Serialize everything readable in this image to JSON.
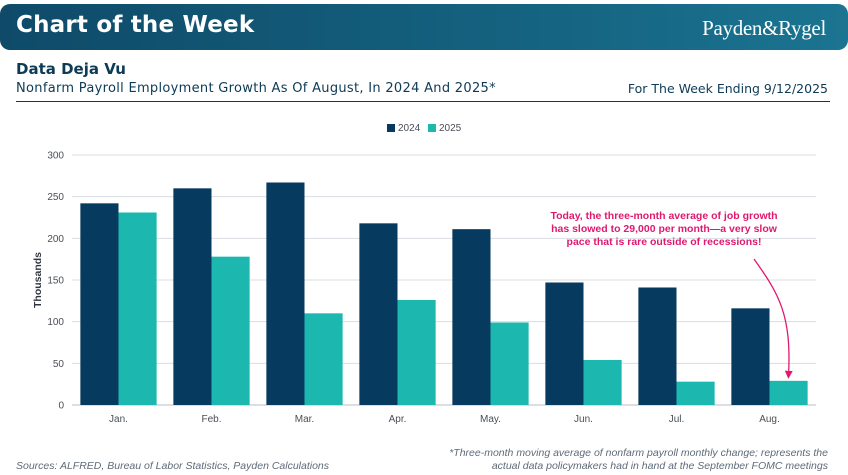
{
  "header": {
    "banner_title": "Chart of the Week",
    "brand": "Payden&Rygel",
    "title": "Data Deja Vu",
    "subtitle": "Nonfarm Payroll Employment Growth As Of August, In 2024 And 2025*",
    "week": "For The Week Ending 9/12/2025"
  },
  "colors": {
    "series_2024": "#063a5e",
    "series_2025": "#1cb8b0",
    "annotation": "#e0196f",
    "grid": "#d9dde2",
    "axis_text": "#4a4f55"
  },
  "chart_data": {
    "type": "bar",
    "categories": [
      "Jan.",
      "Feb.",
      "Mar.",
      "Apr.",
      "May.",
      "Jun.",
      "Jul.",
      "Aug."
    ],
    "series": [
      {
        "name": "2024",
        "values": [
          242,
          260,
          267,
          218,
          211,
          147,
          141,
          116
        ]
      },
      {
        "name": "2025",
        "values": [
          231,
          178,
          110,
          126,
          99,
          54,
          28,
          29
        ]
      }
    ],
    "ylabel": "Thousands",
    "xlabel": "",
    "ylim": [
      0,
      300
    ],
    "yticks": [
      0,
      50,
      100,
      150,
      200,
      250,
      300
    ],
    "legend_position": "top-center",
    "grid": true,
    "annotation": {
      "lines": [
        "Today, the three-month average of job growth",
        "has slowed to 29,000 per month—a very slow",
        "pace that is rare outside of recessions!"
      ],
      "target_category": "Aug.",
      "target_series": "2025"
    }
  },
  "footer": {
    "sources": "Sources: ALFRED, Bureau of Labor Statistics, Payden Calculations",
    "footnote_lines": [
      "*Three-month moving average of nonfarm payroll monthly change; represents the",
      "actual data policymakers had in hand at the September FOMC meetings"
    ]
  }
}
